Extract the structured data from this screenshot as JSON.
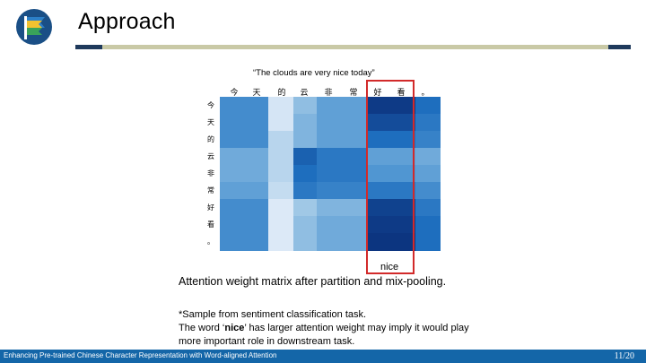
{
  "slide": {
    "title": "Approach",
    "sentence": "“The clouds are very nice today”",
    "nice_label": "nice",
    "caption": "Attention weight matrix after partition and mix-pooling.",
    "note_line1": "*Sample from sentiment classification task.",
    "note_line2_pre": "The word ‘",
    "note_line2_bold": "nice",
    "note_line2_post": "’ has larger attention weight may imply it would play",
    "note_line3": "more important role in downstream task.",
    "highlight_color": "#d22a2a"
  },
  "footer": {
    "text": "Enhancing Pre-trained Chinese Character Representation with Word-aligned Attention",
    "page": "11/20",
    "color": "#1466a8"
  },
  "chart_data": {
    "type": "heatmap",
    "title": "“The clouds are very nice today”",
    "x_labels": [
      "今",
      "天",
      "的",
      "云",
      "非",
      "常",
      "好",
      "看",
      "。"
    ],
    "y_labels": [
      "今",
      "天",
      "的",
      "云",
      "非",
      "常",
      "好",
      "看",
      "。"
    ],
    "color_scale": "Blues",
    "values": [
      [
        0.6,
        0.6,
        0.08,
        0.35,
        0.5,
        0.5,
        0.95,
        0.95,
        0.75
      ],
      [
        0.6,
        0.6,
        0.08,
        0.4,
        0.5,
        0.5,
        0.88,
        0.88,
        0.7
      ],
      [
        0.6,
        0.6,
        0.2,
        0.4,
        0.5,
        0.5,
        0.75,
        0.75,
        0.65
      ],
      [
        0.45,
        0.45,
        0.2,
        0.8,
        0.7,
        0.7,
        0.5,
        0.5,
        0.45
      ],
      [
        0.45,
        0.45,
        0.2,
        0.75,
        0.7,
        0.7,
        0.55,
        0.55,
        0.5
      ],
      [
        0.5,
        0.5,
        0.15,
        0.7,
        0.65,
        0.65,
        0.7,
        0.7,
        0.6
      ],
      [
        0.6,
        0.6,
        0.05,
        0.3,
        0.4,
        0.4,
        0.92,
        0.92,
        0.7
      ],
      [
        0.6,
        0.6,
        0.05,
        0.35,
        0.45,
        0.45,
        0.95,
        0.95,
        0.75
      ],
      [
        0.6,
        0.6,
        0.05,
        0.35,
        0.45,
        0.45,
        0.97,
        0.97,
        0.75
      ]
    ]
  }
}
